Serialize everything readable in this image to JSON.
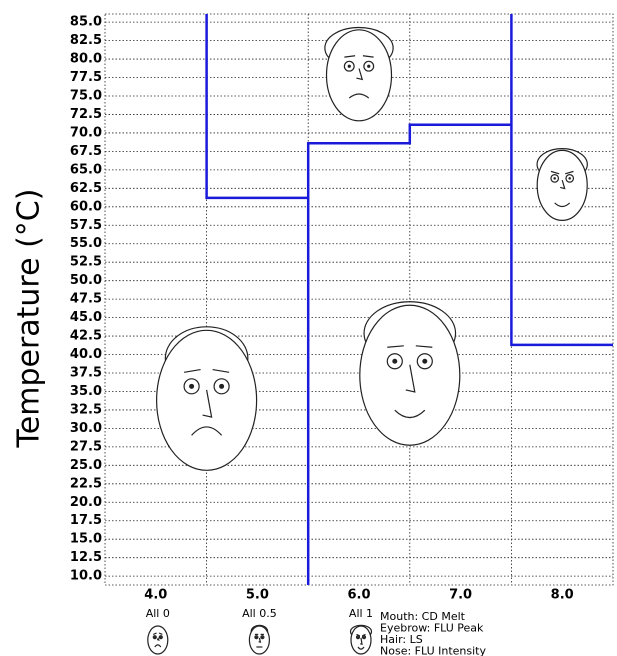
{
  "chart_data": {
    "type": "faces",
    "y_label": "Temperature (°C)",
    "xlim": [
      3.5,
      8.5
    ],
    "xticks": [
      {
        "value": 4,
        "label": "4.0"
      },
      {
        "value": 5,
        "label": "5.0"
      },
      {
        "value": 6,
        "label": "6.0"
      },
      {
        "value": 7,
        "label": "7.0"
      },
      {
        "value": 8,
        "label": "8.0"
      }
    ],
    "xgrid": [
      4.5,
      5.5,
      6.5,
      7.5
    ],
    "ylim": [
      8.8,
      86.1
    ],
    "yticks": [
      {
        "value": 10,
        "label": "10.0"
      },
      {
        "value": 12.5,
        "label": "12.5"
      },
      {
        "value": 15,
        "label": "15.0"
      },
      {
        "value": 17.5,
        "label": "17.5"
      },
      {
        "value": 20,
        "label": "20.0"
      },
      {
        "value": 22.5,
        "label": "22.5"
      },
      {
        "value": 25,
        "label": "25.0"
      },
      {
        "value": 27.5,
        "label": "27.5"
      },
      {
        "value": 30,
        "label": "30.0"
      },
      {
        "value": 32.5,
        "label": "32.5"
      },
      {
        "value": 35,
        "label": "35.0"
      },
      {
        "value": 37.5,
        "label": "37.5"
      },
      {
        "value": 40,
        "label": "40.0"
      },
      {
        "value": 42.5,
        "label": "42.5"
      },
      {
        "value": 45,
        "label": "45.0"
      },
      {
        "value": 47.5,
        "label": "47.5"
      },
      {
        "value": 50,
        "label": "50.0"
      },
      {
        "value": 52.5,
        "label": "52.5"
      },
      {
        "value": 55,
        "label": "55.0"
      },
      {
        "value": 57.5,
        "label": "57.5"
      },
      {
        "value": 60,
        "label": "60.0"
      },
      {
        "value": 62.5,
        "label": "62.5"
      },
      {
        "value": 65,
        "label": "65.0"
      },
      {
        "value": 67.5,
        "label": "67.5"
      },
      {
        "value": 70,
        "label": "70.0"
      },
      {
        "value": 72.5,
        "label": "72.5"
      },
      {
        "value": 75,
        "label": "75.0"
      },
      {
        "value": 77.5,
        "label": "77.5"
      },
      {
        "value": 80,
        "label": "80.0"
      },
      {
        "value": 82.5,
        "label": "82.5"
      },
      {
        "value": 85,
        "label": "85.0"
      }
    ],
    "grid": true,
    "step_line": {
      "color": "#1a1adb",
      "x": [
        4.5,
        4.5,
        5.5,
        5.5,
        5.5,
        6.5,
        6.5,
        7.5,
        7.5,
        7.5,
        8.5
      ],
      "values": [
        86.1,
        61.2,
        61.2,
        8.8,
        68.6,
        68.6,
        71.1,
        71.1,
        86.1,
        41.3,
        41.3
      ]
    },
    "faces": [
      {
        "x": 4.5,
        "y": 33.8,
        "size": 1,
        "mouth": 0.1,
        "eyebrow": 0.3,
        "hair": 0.5,
        "nose": 0.8
      },
      {
        "x": 6.0,
        "y": 77.8,
        "size": 0.65,
        "mouth": 0.2,
        "eyebrow": 0.35,
        "hair": 1,
        "nose": 0.3
      },
      {
        "x": 6.5,
        "y": 37.2,
        "size": 1,
        "mouth": 0.85,
        "eyebrow": 0.4,
        "hair": 0.7,
        "nose": 0.8
      },
      {
        "x": 8.0,
        "y": 62.9,
        "size": 0.5,
        "mouth": 0.85,
        "eyebrow": 0.85,
        "hair": 0.9,
        "nose": 0.3
      }
    ],
    "legend_faces": [
      {
        "label": "All 0",
        "value": 0
      },
      {
        "label": "All 0.5",
        "value": 0.5
      },
      {
        "label": "All 1",
        "value": 1
      }
    ],
    "feature_legend": [
      "Mouth: CD Melt",
      "Eyebrow: FLU Peak",
      "Hair: LS",
      "Nose: FLU Intensity"
    ]
  }
}
